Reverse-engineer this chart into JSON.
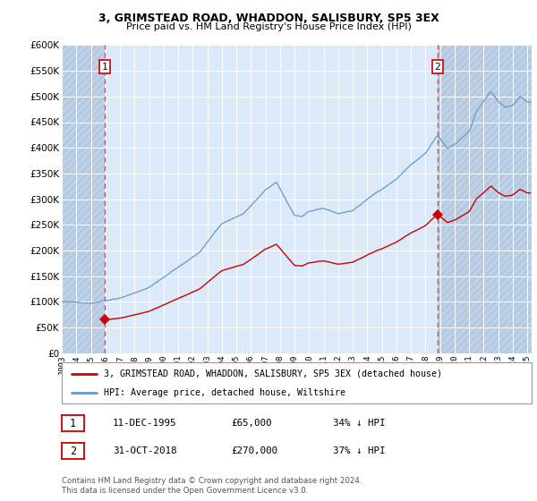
{
  "title1": "3, GRIMSTEAD ROAD, WHADDON, SALISBURY, SP5 3EX",
  "title2": "Price paid vs. HM Land Registry's House Price Index (HPI)",
  "legend_line1": "3, GRIMSTEAD ROAD, WHADDON, SALISBURY, SP5 3EX (detached house)",
  "legend_line2": "HPI: Average price, detached house, Wiltshire",
  "footnote": "Contains HM Land Registry data © Crown copyright and database right 2024.\nThis data is licensed under the Open Government Licence v3.0.",
  "annotation1_date": "11-DEC-1995",
  "annotation1_price": "£65,000",
  "annotation1_hpi": "34% ↓ HPI",
  "annotation2_date": "31-OCT-2018",
  "annotation2_price": "£270,000",
  "annotation2_hpi": "37% ↓ HPI",
  "purchase1_x": 1995.95,
  "purchase1_y": 65000,
  "purchase2_x": 2018.83,
  "purchase2_y": 270000,
  "ylim": [
    0,
    600000
  ],
  "yticks": [
    0,
    50000,
    100000,
    150000,
    200000,
    250000,
    300000,
    350000,
    400000,
    450000,
    500000,
    550000,
    600000
  ],
  "bg_color": "#dce9f8",
  "hatch_color": "#bdd0e8",
  "grid_color": "#ffffff",
  "line_red_color": "#cc0000",
  "line_blue_color": "#6699cc",
  "xlim_left": 1993.0,
  "xlim_right": 2025.3
}
